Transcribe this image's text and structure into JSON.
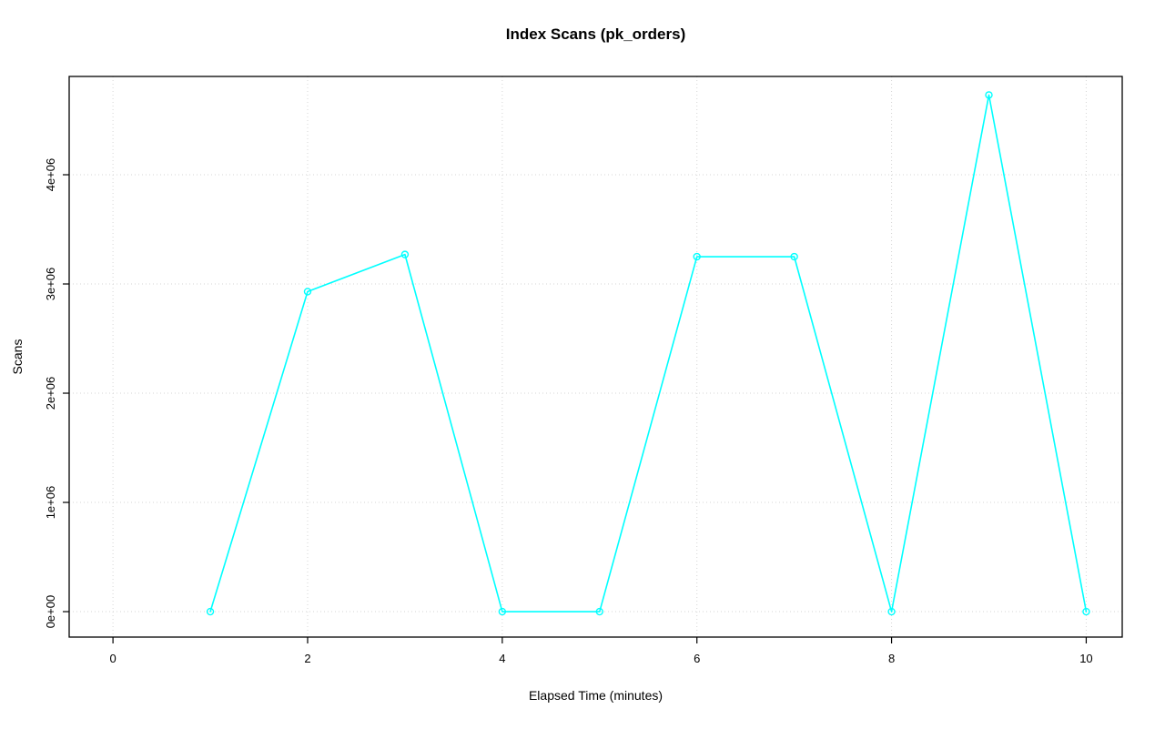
{
  "chart_data": {
    "type": "line",
    "title": "Index Scans (pk_orders)",
    "xlabel": "Elapsed Time (minutes)",
    "ylabel": "Scans",
    "x": [
      1,
      2,
      3,
      4,
      5,
      6,
      7,
      8,
      9,
      10
    ],
    "values": [
      0,
      2930000,
      3270000,
      0,
      0,
      3250000,
      3250000,
      0,
      4730000,
      0
    ],
    "x_ticks": [
      0,
      2,
      4,
      6,
      8,
      10
    ],
    "x_tick_labels": [
      "0",
      "2",
      "4",
      "6",
      "8",
      "10"
    ],
    "y_ticks": [
      0,
      1000000,
      2000000,
      3000000,
      4000000
    ],
    "y_tick_labels": [
      "0e+00",
      "1e+06",
      "2e+06",
      "3e+06",
      "4e+06"
    ],
    "xlim": [
      -0.45,
      10.37
    ],
    "ylim": [
      -233000,
      4900000
    ],
    "grid": true,
    "legend": "none",
    "line_color": "#00FFFF",
    "grid_color": "#D6D6D6",
    "marker": "open-circle"
  }
}
